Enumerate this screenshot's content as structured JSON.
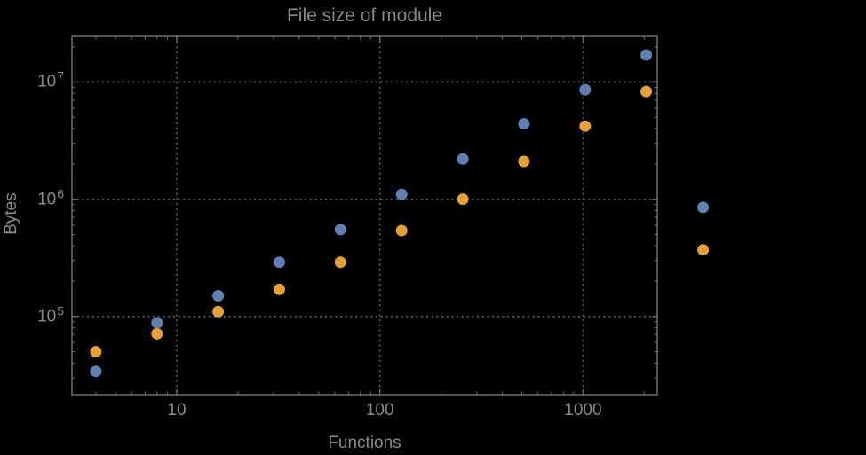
{
  "colors": {
    "background": "#000000",
    "frame": "#6F6F6F",
    "grid": "#636363",
    "text": "#8A8A8A",
    "series_blue": "#5E81B5",
    "series_orange": "#E5A033"
  },
  "chart_data": {
    "type": "scatter",
    "title": "File size of module",
    "xlabel": "Functions",
    "ylabel": "Bytes",
    "x_scale": "log",
    "y_scale": "log",
    "xlim": [
      3.05,
      2320
    ],
    "ylim": [
      21500,
      24500000
    ],
    "grid": "dotted lines at decades",
    "legend": "none",
    "x_ticks": [
      {
        "label": "10",
        "value": 10
      },
      {
        "label": "100",
        "value": 100
      },
      {
        "label": "1000",
        "value": 1000
      }
    ],
    "y_ticks": [
      {
        "base": "10",
        "exp": "5",
        "value": 100000
      },
      {
        "base": "10",
        "exp": "6",
        "value": 1000000
      },
      {
        "base": "10",
        "exp": "7",
        "value": 10000000
      }
    ],
    "series": [
      {
        "name": "blue",
        "color": "#5E81B5",
        "points": [
          [
            4,
            34000
          ],
          [
            8,
            88000
          ],
          [
            16,
            150000
          ],
          [
            32,
            290000
          ],
          [
            64,
            550000
          ],
          [
            128,
            1100000
          ],
          [
            256,
            2200000
          ],
          [
            512,
            4400000
          ],
          [
            1024,
            8600000
          ],
          [
            2048,
            17000000
          ],
          [
            3900,
            850000
          ]
        ]
      },
      {
        "name": "orange",
        "color": "#E5A033",
        "points": [
          [
            4,
            50000
          ],
          [
            8,
            71000
          ],
          [
            16,
            110000
          ],
          [
            32,
            170000
          ],
          [
            64,
            290000
          ],
          [
            128,
            540000
          ],
          [
            256,
            1000000
          ],
          [
            512,
            2100000
          ],
          [
            1024,
            4200000
          ],
          [
            2048,
            8300000
          ],
          [
            3900,
            370000
          ]
        ]
      }
    ]
  }
}
